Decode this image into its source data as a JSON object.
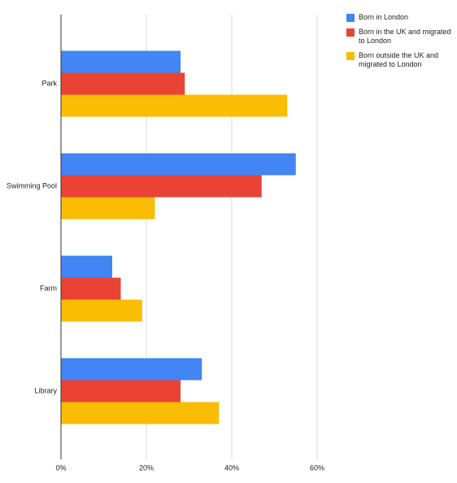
{
  "chart_data": {
    "type": "hbar",
    "categories": [
      "Park",
      "Swimming Pool",
      "Farm",
      "Library"
    ],
    "series": [
      {
        "name": "Born in London",
        "color": "#4285f4",
        "values": [
          28,
          55,
          12,
          33
        ]
      },
      {
        "name": "Born in the UK and migrated to London",
        "color": "#ea4335",
        "values": [
          29,
          47,
          14,
          28
        ]
      },
      {
        "name": "Born outside the UK and migrated to London",
        "color": "#fbbc04",
        "values": [
          53,
          22,
          19,
          37
        ]
      }
    ],
    "xlim": [
      0,
      60
    ],
    "xticks": [
      {
        "value": 0,
        "label": "0%"
      },
      {
        "value": 20,
        "label": "20%"
      },
      {
        "value": 40,
        "label": "40%"
      },
      {
        "value": 60,
        "label": "60%"
      }
    ],
    "grid": true,
    "legend": "top-right"
  }
}
